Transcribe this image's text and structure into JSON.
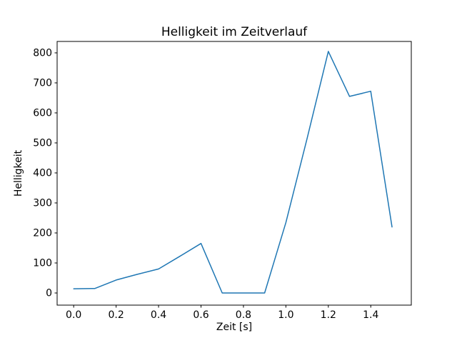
{
  "figure": {
    "title": "Helligkeit im Zeitverlauf"
  },
  "chart_data": {
    "type": "line",
    "title": "Helligkeit im Zeitverlauf",
    "xlabel": "Zeit [s]",
    "ylabel": "Helligkeit",
    "x": [
      0.0,
      0.1,
      0.2,
      0.3,
      0.4,
      0.5,
      0.6,
      0.7,
      0.8,
      0.9,
      1.0,
      1.1,
      1.2,
      1.3,
      1.4,
      1.5
    ],
    "y": [
      14,
      15,
      43,
      62,
      80,
      122,
      165,
      0,
      0,
      0,
      235,
      515,
      805,
      655,
      672,
      220
    ],
    "xticks": {
      "values": [
        0.0,
        0.2,
        0.4,
        0.6,
        0.8,
        1.0,
        1.2,
        1.4
      ],
      "labels": [
        "0.0",
        "0.2",
        "0.4",
        "0.6",
        "0.8",
        "1.0",
        "1.2",
        "1.4"
      ]
    },
    "yticks": {
      "values": [
        0,
        100,
        200,
        300,
        400,
        500,
        600,
        700,
        800
      ],
      "labels": [
        "0",
        "100",
        "200",
        "300",
        "400",
        "500",
        "600",
        "700",
        "800"
      ]
    },
    "xlim": [
      -0.078,
      1.591
    ],
    "ylim": [
      -40.5,
      838
    ],
    "grid": false,
    "legend": null,
    "line_color": "#1f77b4",
    "axes_color": "#000000",
    "background": "#ffffff"
  }
}
